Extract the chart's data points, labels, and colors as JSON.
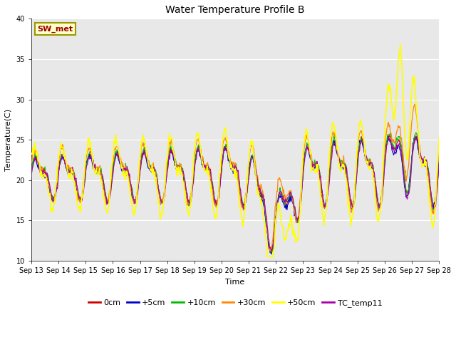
{
  "title": "Water Temperature Profile B",
  "xlabel": "Time",
  "ylabel": "Temperature(C)",
  "ylim": [
    10,
    40
  ],
  "annotation_text": "SW_met",
  "plot_bg_color": "#e8e8e8",
  "fig_bg_color": "#ffffff",
  "grid_color": "#ffffff",
  "series": {
    "0cm": {
      "color": "#cc0000",
      "lw": 0.8,
      "zorder": 4
    },
    "+5cm": {
      "color": "#0000cc",
      "lw": 0.8,
      "zorder": 4
    },
    "+10cm": {
      "color": "#00bb00",
      "lw": 0.8,
      "zorder": 4
    },
    "+30cm": {
      "color": "#ff8800",
      "lw": 0.9,
      "zorder": 4
    },
    "+50cm": {
      "color": "#ffff00",
      "lw": 1.2,
      "zorder": 5
    },
    "TC_temp11": {
      "color": "#aa00aa",
      "lw": 0.8,
      "zorder": 4
    }
  },
  "xtick_labels": [
    "Sep 13",
    "Sep 14",
    "Sep 15",
    "Sep 16",
    "Sep 17",
    "Sep 18",
    "Sep 19",
    "Sep 20",
    "Sep 21",
    "Sep 22",
    "Sep 23",
    "Sep 24",
    "Sep 25",
    "Sep 26",
    "Sep 27",
    "Sep 28"
  ],
  "ytick_labels": [
    10,
    15,
    20,
    25,
    30,
    35,
    40
  ],
  "tick_fontsize": 7,
  "label_fontsize": 8,
  "title_fontsize": 10,
  "legend_fontsize": 8
}
